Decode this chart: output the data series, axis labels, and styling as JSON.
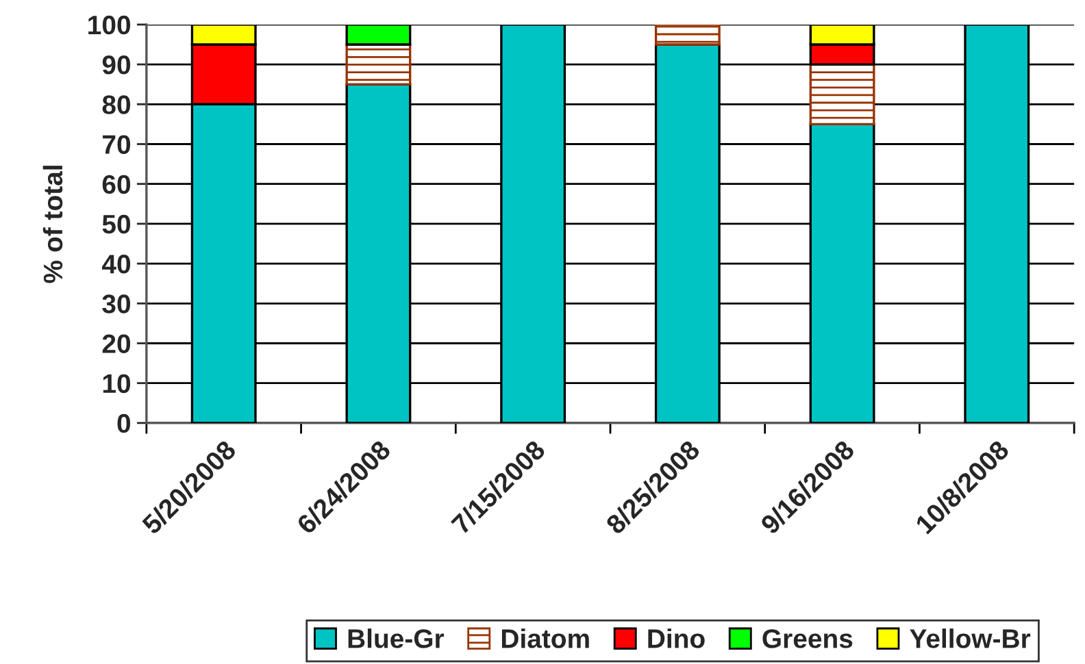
{
  "chart_data": {
    "type": "bar",
    "stacked": true,
    "ylabel": "% of total",
    "categories": [
      "5/20/2008",
      "6/24/2008",
      "7/15/2008",
      "8/25/2008",
      "9/16/2008",
      "10/8/2008"
    ],
    "series": [
      {
        "name": "Blue-Gr",
        "color": "#00c4c4",
        "values": [
          80,
          85,
          100,
          95,
          75,
          100
        ]
      },
      {
        "name": "Diatom",
        "color": "#993300",
        "values": [
          0,
          10,
          0,
          5,
          15,
          0
        ]
      },
      {
        "name": "Dino",
        "color": "#ff0000",
        "values": [
          15,
          0,
          0,
          0,
          5,
          0
        ]
      },
      {
        "name": "Greens",
        "color": "#00ff00",
        "values": [
          0,
          5,
          0,
          0,
          0,
          0
        ]
      },
      {
        "name": "Yellow-Br",
        "color": "#ffff00",
        "values": [
          5,
          0,
          0,
          0,
          5,
          0
        ]
      }
    ],
    "ylim": [
      0,
      100
    ],
    "yticks": [
      0,
      10,
      20,
      30,
      40,
      50,
      60,
      70,
      80,
      90,
      100
    ],
    "grid": "y",
    "legend": "bottom"
  }
}
